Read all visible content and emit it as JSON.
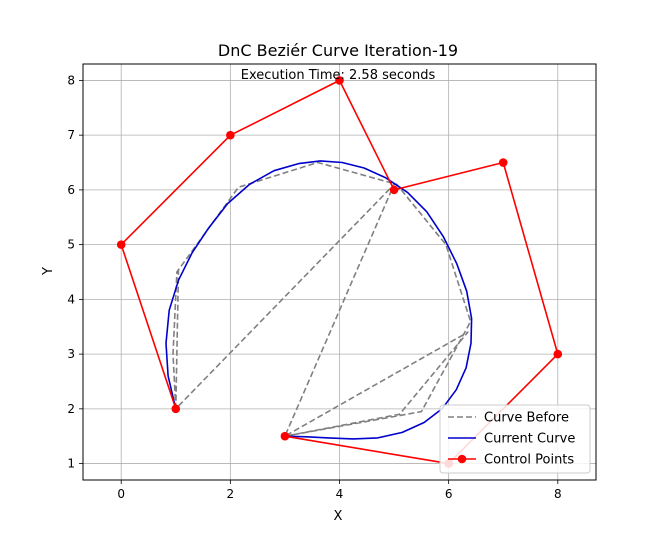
{
  "chart_data": {
    "type": "line",
    "title": "DnC Beziér Curve Iteration-19",
    "annotation": "Execution Time: 2.58 seconds",
    "xlabel": "X",
    "ylabel": "Y",
    "xlim": [
      -0.7,
      8.7
    ],
    "ylim": [
      0.7,
      8.3
    ],
    "xticks": [
      0,
      2,
      4,
      6,
      8
    ],
    "yticks": [
      1,
      2,
      3,
      4,
      5,
      6,
      7,
      8
    ],
    "grid": true,
    "legend_position": "lower-right",
    "colors": {
      "curve_before": "#808080",
      "current_curve": "#0000cc",
      "control_points": "#ff0000"
    },
    "series": [
      {
        "name": "Curve Before",
        "style": "dashed",
        "x": [
          1,
          0.95,
          1.02,
          2.15,
          3.6,
          5.05,
          5.95,
          6.4,
          6.35,
          5.5,
          3,
          5.1,
          6.35,
          3,
          5,
          1,
          1.05
        ],
        "y": [
          2,
          3,
          4.5,
          6.05,
          6.5,
          6.1,
          5.0,
          3.6,
          3.5,
          1.95,
          1.5,
          1.9,
          3.4,
          1.5,
          6.1,
          2.0,
          4.55
        ]
      },
      {
        "name": "Current Curve",
        "style": "solid",
        "x": [
          1,
          0.86,
          0.82,
          0.88,
          1.05,
          1.3,
          1.6,
          1.95,
          2.35,
          2.8,
          3.25,
          3.65,
          4.05,
          4.45,
          4.85,
          5.25,
          5.6,
          5.9,
          6.15,
          6.33,
          6.42,
          6.41,
          6.32,
          6.14,
          5.88,
          5.55,
          5.15,
          4.7,
          4.25,
          3.8,
          3.4,
          3
        ],
        "y": [
          2,
          2.6,
          3.2,
          3.8,
          4.35,
          4.85,
          5.3,
          5.75,
          6.1,
          6.35,
          6.48,
          6.53,
          6.5,
          6.4,
          6.22,
          5.95,
          5.6,
          5.15,
          4.65,
          4.15,
          3.65,
          3.2,
          2.75,
          2.35,
          2.0,
          1.75,
          1.57,
          1.47,
          1.45,
          1.47,
          1.49,
          1.5
        ]
      },
      {
        "name": "Control Points",
        "style": "solid-markers",
        "x": [
          1,
          0,
          2,
          4,
          5,
          7,
          8,
          6,
          3
        ],
        "y": [
          2,
          5,
          7,
          8,
          6,
          6.5,
          3,
          1,
          1.5
        ]
      }
    ]
  }
}
